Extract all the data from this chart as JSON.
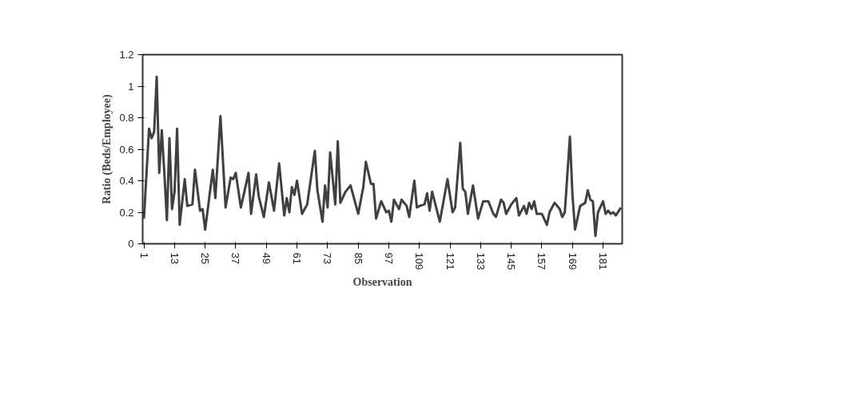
{
  "chart_data": {
    "type": "line",
    "xlabel": "Observation",
    "ylabel": "Ratio (Beds/Employee)",
    "xlim": [
      0.5,
      188.5
    ],
    "xticks": [
      1,
      13,
      25,
      37,
      49,
      61,
      73,
      85,
      97,
      109,
      121,
      133,
      145,
      157,
      169,
      181
    ],
    "ylim": [
      0,
      1.2
    ],
    "yticks": [
      0,
      0.2,
      0.4,
      0.6,
      0.8,
      1,
      1.2
    ],
    "grid": false,
    "marker": "none",
    "line_style": "solid",
    "series": [
      {
        "color": "#404040",
        "x": [
          1,
          3,
          4,
          5,
          6,
          7,
          8,
          9,
          10,
          11,
          12,
          13,
          14,
          15,
          17,
          18,
          20,
          21,
          23,
          24,
          25,
          28,
          29,
          31,
          33,
          35,
          36,
          37,
          39,
          42,
          43,
          45,
          46,
          48,
          50,
          52,
          54,
          56,
          57,
          58,
          59,
          60,
          61,
          63,
          65,
          68,
          69,
          71,
          72,
          73,
          74,
          76,
          77,
          78,
          80,
          82,
          85,
          87,
          88,
          90,
          91,
          92,
          94,
          96,
          97,
          98,
          99,
          101,
          102,
          104,
          105,
          107,
          108,
          109,
          111,
          112,
          113,
          114,
          117,
          120,
          122,
          123,
          125,
          126,
          127,
          128,
          130,
          132,
          134,
          136,
          138,
          139,
          141,
          142,
          143,
          145,
          147,
          148,
          150,
          151,
          152,
          153,
          154,
          155,
          157,
          159,
          160,
          162,
          164,
          165,
          166,
          168,
          169,
          170,
          172,
          174,
          175,
          176,
          177,
          178,
          179,
          181,
          182,
          183,
          184,
          185,
          186,
          188
        ],
        "values": [
          0.16,
          0.73,
          0.67,
          0.71,
          1.06,
          0.45,
          0.72,
          0.45,
          0.15,
          0.67,
          0.22,
          0.33,
          0.73,
          0.12,
          0.41,
          0.24,
          0.25,
          0.47,
          0.21,
          0.22,
          0.09,
          0.47,
          0.29,
          0.81,
          0.23,
          0.42,
          0.41,
          0.45,
          0.23,
          0.45,
          0.19,
          0.44,
          0.3,
          0.17,
          0.39,
          0.21,
          0.51,
          0.18,
          0.29,
          0.2,
          0.36,
          0.31,
          0.4,
          0.19,
          0.25,
          0.59,
          0.34,
          0.14,
          0.37,
          0.23,
          0.58,
          0.25,
          0.65,
          0.26,
          0.33,
          0.37,
          0.19,
          0.36,
          0.52,
          0.38,
          0.38,
          0.16,
          0.27,
          0.2,
          0.21,
          0.14,
          0.28,
          0.22,
          0.28,
          0.24,
          0.17,
          0.4,
          0.23,
          0.24,
          0.25,
          0.32,
          0.21,
          0.33,
          0.14,
          0.41,
          0.2,
          0.23,
          0.64,
          0.35,
          0.33,
          0.19,
          0.37,
          0.16,
          0.27,
          0.27,
          0.19,
          0.17,
          0.28,
          0.26,
          0.19,
          0.25,
          0.29,
          0.18,
          0.24,
          0.19,
          0.26,
          0.22,
          0.27,
          0.19,
          0.19,
          0.12,
          0.2,
          0.26,
          0.22,
          0.17,
          0.2,
          0.68,
          0.31,
          0.09,
          0.24,
          0.26,
          0.34,
          0.28,
          0.27,
          0.05,
          0.2,
          0.27,
          0.19,
          0.21,
          0.19,
          0.2,
          0.18,
          0.23
        ]
      }
    ]
  }
}
